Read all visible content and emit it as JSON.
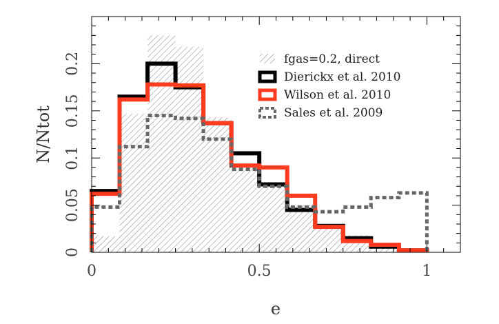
{
  "chart_data": {
    "type": "histogram",
    "xlabel": "e",
    "ylabel": "N/Ntot",
    "xlim": [
      0,
      1.1
    ],
    "ylim": [
      0,
      0.25
    ],
    "x_ticks": [
      "0",
      "0.5",
      "1"
    ],
    "x_tick_values": [
      0,
      0.5,
      1
    ],
    "y_ticks": [
      "0",
      "0.05",
      "0.1",
      "0.15",
      "0.2"
    ],
    "y_tick_values": [
      0,
      0.05,
      0.1,
      0.15,
      0.2
    ],
    "bin_edges": [
      0,
      0.0833,
      0.1667,
      0.25,
      0.3333,
      0.4167,
      0.5,
      0.5833,
      0.6667,
      0.75,
      0.8333,
      0.9167,
      1.0
    ],
    "series": [
      {
        "name": "fgas=0.2, direct",
        "style": "hatched",
        "color": "#777777",
        "values": [
          0.017,
          0.147,
          0.23,
          0.218,
          0.143,
          0.09,
          0.072,
          0.05,
          0.03,
          0.018,
          0.01,
          0.002
        ]
      },
      {
        "name": "Dierickx et al. 2010",
        "style": "solid",
        "color": "#000000",
        "values": [
          0.065,
          0.165,
          0.2,
          0.175,
          0.137,
          0.105,
          0.072,
          0.045,
          0.028,
          0.015,
          0.006,
          0.002
        ]
      },
      {
        "name": "Wilson et al. 2010",
        "style": "solid",
        "color": "#ff3b1f",
        "values": [
          0.062,
          0.162,
          0.178,
          0.177,
          0.137,
          0.092,
          0.09,
          0.06,
          0.027,
          0.012,
          0.008,
          0.002
        ]
      },
      {
        "name": "Sales et al. 2009",
        "style": "dotted",
        "color": "#666666",
        "values": [
          0.048,
          0.112,
          0.145,
          0.142,
          0.12,
          0.088,
          0.07,
          0.048,
          0.043,
          0.048,
          0.058,
          0.063
        ]
      }
    ],
    "legend": "top-right",
    "grid": false
  }
}
